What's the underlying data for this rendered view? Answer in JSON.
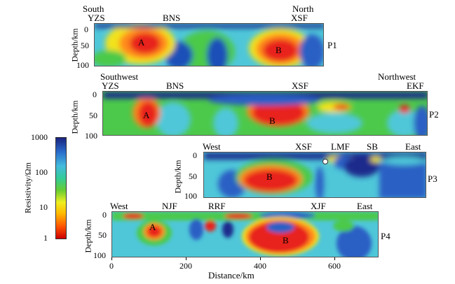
{
  "panels": {
    "p1": {
      "name": "P1",
      "left_ends": [
        "South",
        "YZS"
      ],
      "right_ends": [
        "North",
        "XSF"
      ],
      "faults": [
        "BNS"
      ],
      "anomalies": [
        "A",
        "B"
      ],
      "depth_ticks": [
        "0",
        "50",
        "100"
      ],
      "ylabel": "Depth/km"
    },
    "p2": {
      "name": "P2",
      "left_ends": [
        "Southwest",
        "YZS"
      ],
      "right_ends": [
        "Northwest",
        "EKF"
      ],
      "faults": [
        "BNS",
        "XSF"
      ],
      "anomalies": [
        "A",
        "B"
      ],
      "depth_ticks": [
        "0",
        "50",
        "100"
      ],
      "ylabel": "Depth/km"
    },
    "p3": {
      "name": "P3",
      "left_end": "West",
      "right_end": "East",
      "faults": [
        "XSF",
        "LMF",
        "SB"
      ],
      "anomalies": [
        "B"
      ],
      "depth_ticks": [
        "0",
        "50",
        "100"
      ],
      "ylabel": "Depth/km"
    },
    "p4": {
      "name": "P4",
      "left_end": "West",
      "right_end": "East",
      "faults": [
        "NJF",
        "RRF",
        "XJF"
      ],
      "anomalies": [
        "A",
        "B"
      ],
      "depth_ticks": [
        "0",
        "50",
        "100"
      ],
      "ylabel": "Depth/km"
    }
  },
  "colorbar": {
    "label": "Resistivity/Ωm",
    "ticks": [
      "1000",
      "100",
      "10",
      "1"
    ],
    "colors": [
      "#cc0000",
      "#ff6600",
      "#ffee00",
      "#88dd22",
      "#22cc66",
      "#33cccc",
      "#3399dd",
      "#2255bb",
      "#1a237e"
    ]
  },
  "xaxis": {
    "label": "Distance/km",
    "ticks": [
      "0",
      "200",
      "400",
      "600"
    ]
  },
  "colors": {
    "red": "#e8221a",
    "orange": "#ff8a1c",
    "yellow": "#f2e21a",
    "green": "#4cc94a",
    "cyan": "#4fc7d9",
    "blue": "#2a5ec4",
    "navy": "#1a2a8c"
  }
}
